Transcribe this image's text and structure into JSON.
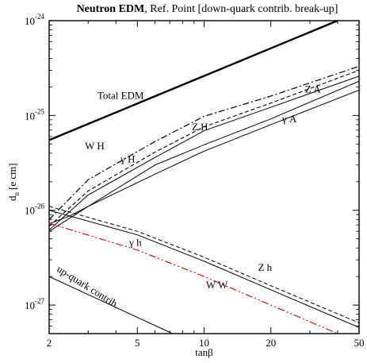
{
  "chart_data": {
    "type": "line",
    "title_bold": "Neutron EDM",
    "title_rest": ", Ref. Point [down-quark contrib. break-up]",
    "xlabel": "tanβ",
    "ylabel_main": "d",
    "ylabel_sub": "n",
    "ylabel_unit": "[e cm]",
    "x_scale": "log",
    "y_scale": "log",
    "xlim": [
      2,
      50
    ],
    "ylim": [
      5e-28,
      1e-24
    ],
    "x_ticks": [
      {
        "value": 2,
        "label": "2"
      },
      {
        "value": 5,
        "label": "5"
      },
      {
        "value": 10,
        "label": "10"
      },
      {
        "value": 20,
        "label": "20"
      },
      {
        "value": 50,
        "label": "50"
      }
    ],
    "x_minor_ticks": [
      3,
      4,
      6,
      7,
      8,
      9,
      30,
      40
    ],
    "y_ticks": [
      {
        "value": 1e-27,
        "base": "10",
        "exp": "-27"
      },
      {
        "value": 1e-26,
        "base": "10",
        "exp": "-26"
      },
      {
        "value": 1e-25,
        "base": "10",
        "exp": "-25"
      },
      {
        "value": 1e-24,
        "base": "10",
        "exp": "-24"
      }
    ],
    "grid": false,
    "series": [
      {
        "name": "Total EDM",
        "color": "#000000",
        "dash": "solid",
        "width": 2.4,
        "x": [
          2,
          40
        ],
        "y": [
          5.5e-26,
          1e-24
        ]
      },
      {
        "name": "W H",
        "color": "#000000",
        "dash": "dashdot",
        "width": 1.2,
        "x": [
          2,
          3,
          6,
          10,
          20,
          50
        ],
        "y": [
          8e-27,
          2.1e-26,
          5.3e-26,
          9.8e-26,
          1.6e-25,
          3.3e-25
        ]
      },
      {
        "name": "Z H",
        "color": "#000000",
        "dash": "dashed",
        "width": 1.1,
        "x": [
          2,
          3,
          6,
          10,
          20,
          50
        ],
        "y": [
          6.8e-27,
          1.6e-26,
          4.1e-26,
          7.6e-26,
          1.35e-25,
          3e-25
        ]
      },
      {
        "name": "Z A",
        "color": "#000000",
        "dash": "solid",
        "width": 1.0,
        "x": [
          2,
          3,
          6,
          10,
          20,
          50
        ],
        "y": [
          6.2e-27,
          1.45e-26,
          3.6e-26,
          6.9e-26,
          1.22e-25,
          2.6e-25
        ]
      },
      {
        "name": "γ H",
        "color": "#000000",
        "dash": "solid",
        "width": 1.0,
        "x": [
          2,
          2.5,
          3,
          6,
          10,
          20,
          50
        ],
        "y": [
          7.2e-27,
          8.8e-27,
          1.1e-26,
          3e-26,
          4.9e-26,
          9.2e-26,
          2.3e-25
        ]
      },
      {
        "name": "γ A",
        "color": "#000000",
        "dash": "solid",
        "width": 1.0,
        "x": [
          2,
          3,
          6,
          10,
          20,
          50
        ],
        "y": [
          6e-27,
          1.1e-26,
          2.4e-26,
          4.2e-26,
          8e-26,
          1.85e-25
        ]
      },
      {
        "name": "Z h",
        "color": "#000000",
        "dash": "dashed",
        "width": 1.0,
        "x": [
          2,
          5,
          10,
          20,
          50
        ],
        "y": [
          1.1e-26,
          6e-27,
          3.2e-27,
          1.6e-27,
          6.5e-28
        ]
      },
      {
        "name": "γ h",
        "color": "#000000",
        "dash": "solid",
        "width": 1.0,
        "x": [
          2,
          5,
          10,
          20,
          50
        ],
        "y": [
          1e-26,
          5.5e-27,
          2.9e-27,
          1.45e-27,
          5.8e-28
        ]
      },
      {
        "name": "W W",
        "color": "#e00000",
        "dash": "dashdotdot",
        "width": 1.1,
        "x": [
          2,
          5,
          10,
          20,
          50
        ],
        "y": [
          7.3e-27,
          3.8e-27,
          2e-27,
          1e-27,
          4e-28
        ]
      },
      {
        "name": "up-quark contrib.",
        "color": "#000000",
        "dash": "solid",
        "width": 1.0,
        "x": [
          2,
          7.2
        ],
        "y": [
          2e-27,
          5e-28
        ]
      }
    ],
    "annotations": [
      {
        "text": "Total EDM",
        "x": 3.3,
        "y": 1.5e-25
      },
      {
        "text": "W H",
        "x": 2.9,
        "y": 4.4e-26
      },
      {
        "text": "γ H",
        "x": 4.2,
        "y": 3.2e-26
      },
      {
        "text": "Z H",
        "x": 8.8,
        "y": 7e-26
      },
      {
        "text": "Z A",
        "x": 28.5,
        "y": 1.75e-25
      },
      {
        "text": "γ A",
        "x": 22.5,
        "y": 8.5e-26
      },
      {
        "text": "γ h",
        "x": 4.6,
        "y": 4.2e-27
      },
      {
        "text": "Z h",
        "x": 17.5,
        "y": 2.3e-27
      },
      {
        "text": "W W",
        "x": 10.2,
        "y": 1.5e-27
      },
      {
        "text": "up-quark contrib.",
        "x": 2.15,
        "y": 2.3e-27,
        "rotate": 32
      }
    ]
  }
}
